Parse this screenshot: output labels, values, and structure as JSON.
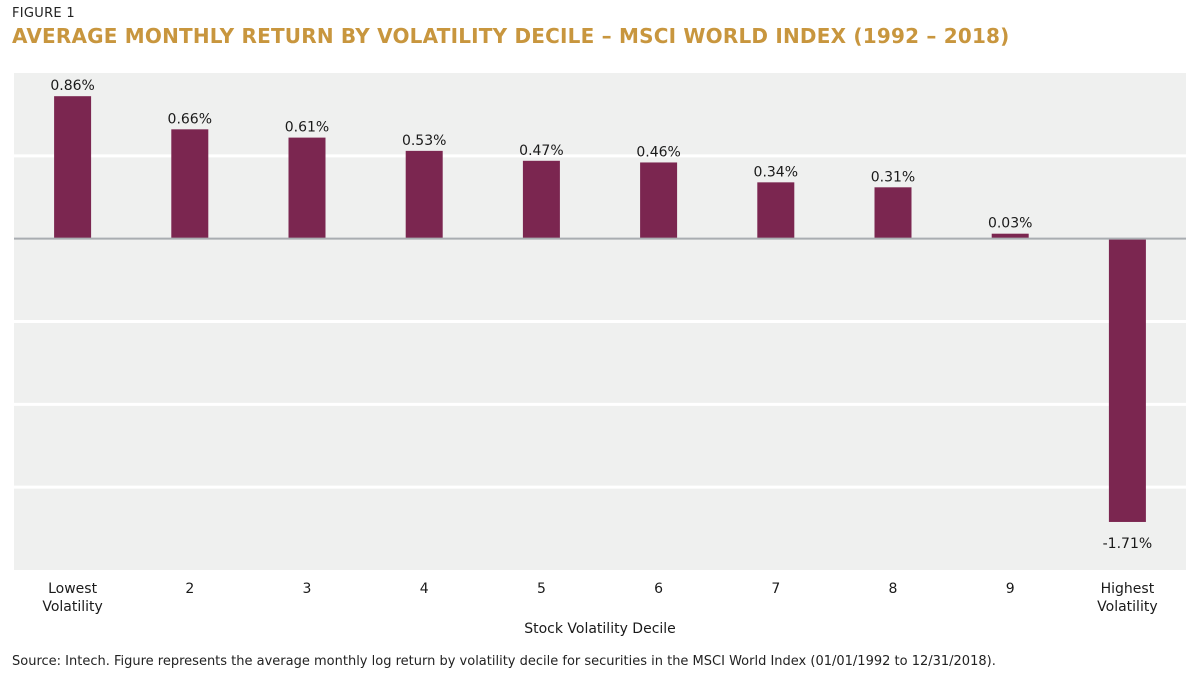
{
  "figure_label": "FIGURE 1",
  "title": "AVERAGE MONTHLY RETURN BY VOLATILITY DECILE – MSCI WORLD INDEX (1992 – 2018)",
  "source": "Source: Intech. Figure represents the average monthly log return by volatility decile for securities in the MSCI World Index (01/01/1992 to 12/31/2018).",
  "colors": {
    "bar": "#7b2650",
    "title": "#c8963e",
    "plot_background": "#eff0ef",
    "gridline": "#ffffff",
    "zero_line": "#a9adb1"
  },
  "chart_data": {
    "type": "bar",
    "title": "AVERAGE MONTHLY RETURN BY VOLATILITY DECILE – MSCI WORLD INDEX (1992 – 2018)",
    "xlabel": "Stock Volatility Decile",
    "ylabel": "",
    "ylim": [
      -2.0,
      1.0
    ],
    "grid": true,
    "categories": [
      [
        "Lowest",
        "Volatility"
      ],
      [
        "2"
      ],
      [
        "3"
      ],
      [
        "4"
      ],
      [
        "5"
      ],
      [
        "6"
      ],
      [
        "7"
      ],
      [
        "8"
      ],
      [
        "9"
      ],
      [
        "Highest",
        "Volatility"
      ]
    ],
    "values": [
      0.86,
      0.66,
      0.61,
      0.53,
      0.47,
      0.46,
      0.34,
      0.31,
      0.03,
      -1.71
    ],
    "value_labels": [
      "0.86%",
      "0.66%",
      "0.61%",
      "0.53%",
      "0.47%",
      "0.46%",
      "0.34%",
      "0.31%",
      "0.03%",
      "-1.71%"
    ]
  }
}
